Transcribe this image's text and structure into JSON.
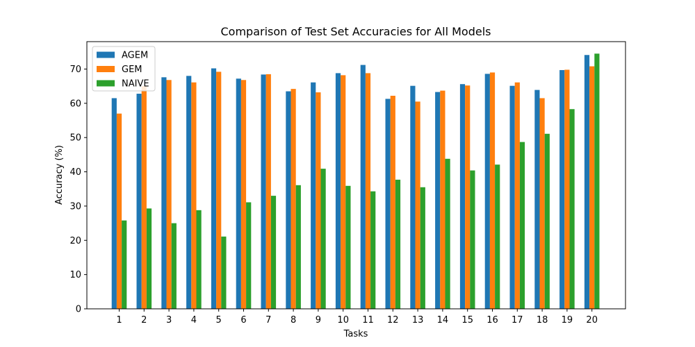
{
  "chart_data": {
    "type": "bar",
    "title": "Comparison of Test Set Accuracies for All Models",
    "xlabel": "Tasks",
    "ylabel": "Accuracy (%)",
    "ylim": [
      0,
      78
    ],
    "yticks": [
      0,
      10,
      20,
      30,
      40,
      50,
      60,
      70
    ],
    "grid": false,
    "legend_position": "top-left",
    "categories": [
      "1",
      "2",
      "3",
      "4",
      "5",
      "6",
      "7",
      "8",
      "9",
      "10",
      "11",
      "12",
      "13",
      "14",
      "15",
      "16",
      "17",
      "18",
      "19",
      "20"
    ],
    "series": [
      {
        "name": "AGEM",
        "color": "#1f77b4",
        "values": [
          61.5,
          62.8,
          67.6,
          68.0,
          70.2,
          67.2,
          68.4,
          63.5,
          66.1,
          68.8,
          71.2,
          61.3,
          65.1,
          63.3,
          65.6,
          68.6,
          65.1,
          63.9,
          69.7,
          74.1
        ]
      },
      {
        "name": "GEM",
        "color": "#ff7f0e",
        "values": [
          57.0,
          65.0,
          66.8,
          66.1,
          69.2,
          66.8,
          68.5,
          64.2,
          63.2,
          68.2,
          68.8,
          62.2,
          60.5,
          63.7,
          65.2,
          69.0,
          66.1,
          61.5,
          69.8,
          70.8
        ]
      },
      {
        "name": "NAIVE",
        "color": "#2ca02c",
        "values": [
          25.8,
          29.3,
          25.0,
          28.8,
          21.1,
          31.1,
          33.0,
          36.1,
          40.9,
          35.9,
          34.3,
          37.7,
          35.5,
          43.8,
          40.4,
          42.1,
          48.7,
          51.1,
          58.3,
          74.5
        ]
      }
    ]
  }
}
